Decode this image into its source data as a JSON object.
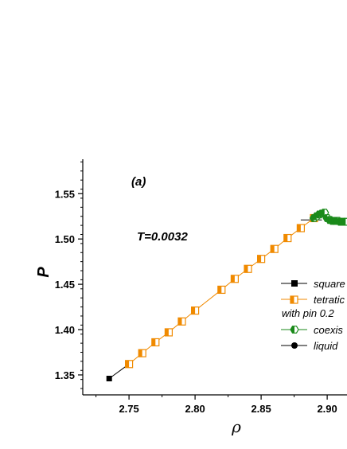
{
  "chart_data": {
    "type": "line",
    "panel_label": "(a)",
    "annotation": "T=0.0032",
    "xlabel": "ρ",
    "ylabel": "P",
    "xlim": [
      2.715,
      2.915
    ],
    "ylim": [
      1.328,
      1.588
    ],
    "xticks": [
      2.75,
      2.8,
      2.85,
      2.9
    ],
    "xtick_labels": [
      "2.75",
      "2.80",
      "2.85",
      "2.90"
    ],
    "yticks": [
      1.35,
      1.4,
      1.45,
      1.5,
      1.55
    ],
    "ytick_labels": [
      "1.35",
      "1.40",
      "1.45",
      "1.50",
      "1.55"
    ],
    "series": [
      {
        "name": "square",
        "color": "#000000",
        "marker": "square-filled",
        "x": [
          2.735,
          2.75
        ],
        "y": [
          1.346,
          1.362
        ]
      },
      {
        "name": "tetratic",
        "name_line2": "with pin 0.2",
        "color": "#f08a00",
        "marker": "square-half",
        "x": [
          2.75,
          2.76,
          2.77,
          2.78,
          2.79,
          2.8,
          2.82,
          2.83,
          2.84,
          2.85,
          2.86,
          2.87,
          2.88,
          2.89
        ],
        "y": [
          1.362,
          1.374,
          1.386,
          1.397,
          1.409,
          1.421,
          1.444,
          1.456,
          1.467,
          1.478,
          1.489,
          1.501,
          1.512,
          1.523
        ]
      },
      {
        "name": "coexis",
        "color": "#1a8a1a",
        "marker": "hexagon-half",
        "x": [
          2.89,
          2.892,
          2.894,
          2.896,
          2.898,
          2.9,
          2.902,
          2.904,
          2.906,
          2.908,
          2.91,
          2.912,
          2.914
        ],
        "y": [
          1.523,
          1.525,
          1.527,
          1.528,
          1.529,
          1.523,
          1.521,
          1.52,
          1.52,
          1.52,
          1.519,
          1.519,
          1.519
        ]
      },
      {
        "name": "liquid",
        "color": "#000000",
        "marker": "circle-filled",
        "x": [
          2.88,
          2.896
        ],
        "y": [
          1.521,
          1.521
        ]
      }
    ],
    "legend_position": "right"
  }
}
